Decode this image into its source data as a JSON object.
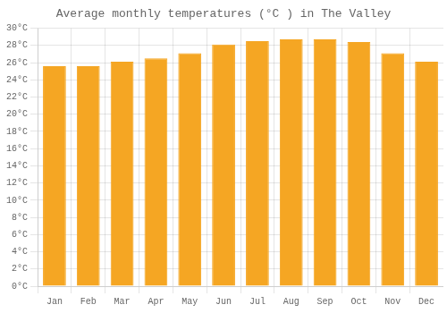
{
  "chart_data": {
    "type": "bar",
    "title": "Average monthly temperatures (°C ) in The Valley",
    "categories": [
      "Jan",
      "Feb",
      "Mar",
      "Apr",
      "May",
      "Jun",
      "Jul",
      "Aug",
      "Sep",
      "Oct",
      "Nov",
      "Dec"
    ],
    "values": [
      25.6,
      25.6,
      26.1,
      26.5,
      27.1,
      28.1,
      28.5,
      28.7,
      28.7,
      28.4,
      27.1,
      26.1
    ],
    "color": "#F5A623",
    "ylim": [
      0,
      30
    ],
    "yticks": [
      {
        "value": 0,
        "label": "0°C"
      },
      {
        "value": 2,
        "label": "2°C"
      },
      {
        "value": 4,
        "label": "4°C"
      },
      {
        "value": 6,
        "label": "6°C"
      },
      {
        "value": 8,
        "label": "8°C"
      },
      {
        "value": 10,
        "label": "10°C"
      },
      {
        "value": 12,
        "label": "12°C"
      },
      {
        "value": 14,
        "label": "14°C"
      },
      {
        "value": 16,
        "label": "16°C"
      },
      {
        "value": 18,
        "label": "18°C"
      },
      {
        "value": 20,
        "label": "20°C"
      },
      {
        "value": 22,
        "label": "22°C"
      },
      {
        "value": 24,
        "label": "24°C"
      },
      {
        "value": 26,
        "label": "26°C"
      },
      {
        "value": 28,
        "label": "28°C"
      },
      {
        "value": 30,
        "label": "30°C"
      }
    ],
    "grid": true
  }
}
